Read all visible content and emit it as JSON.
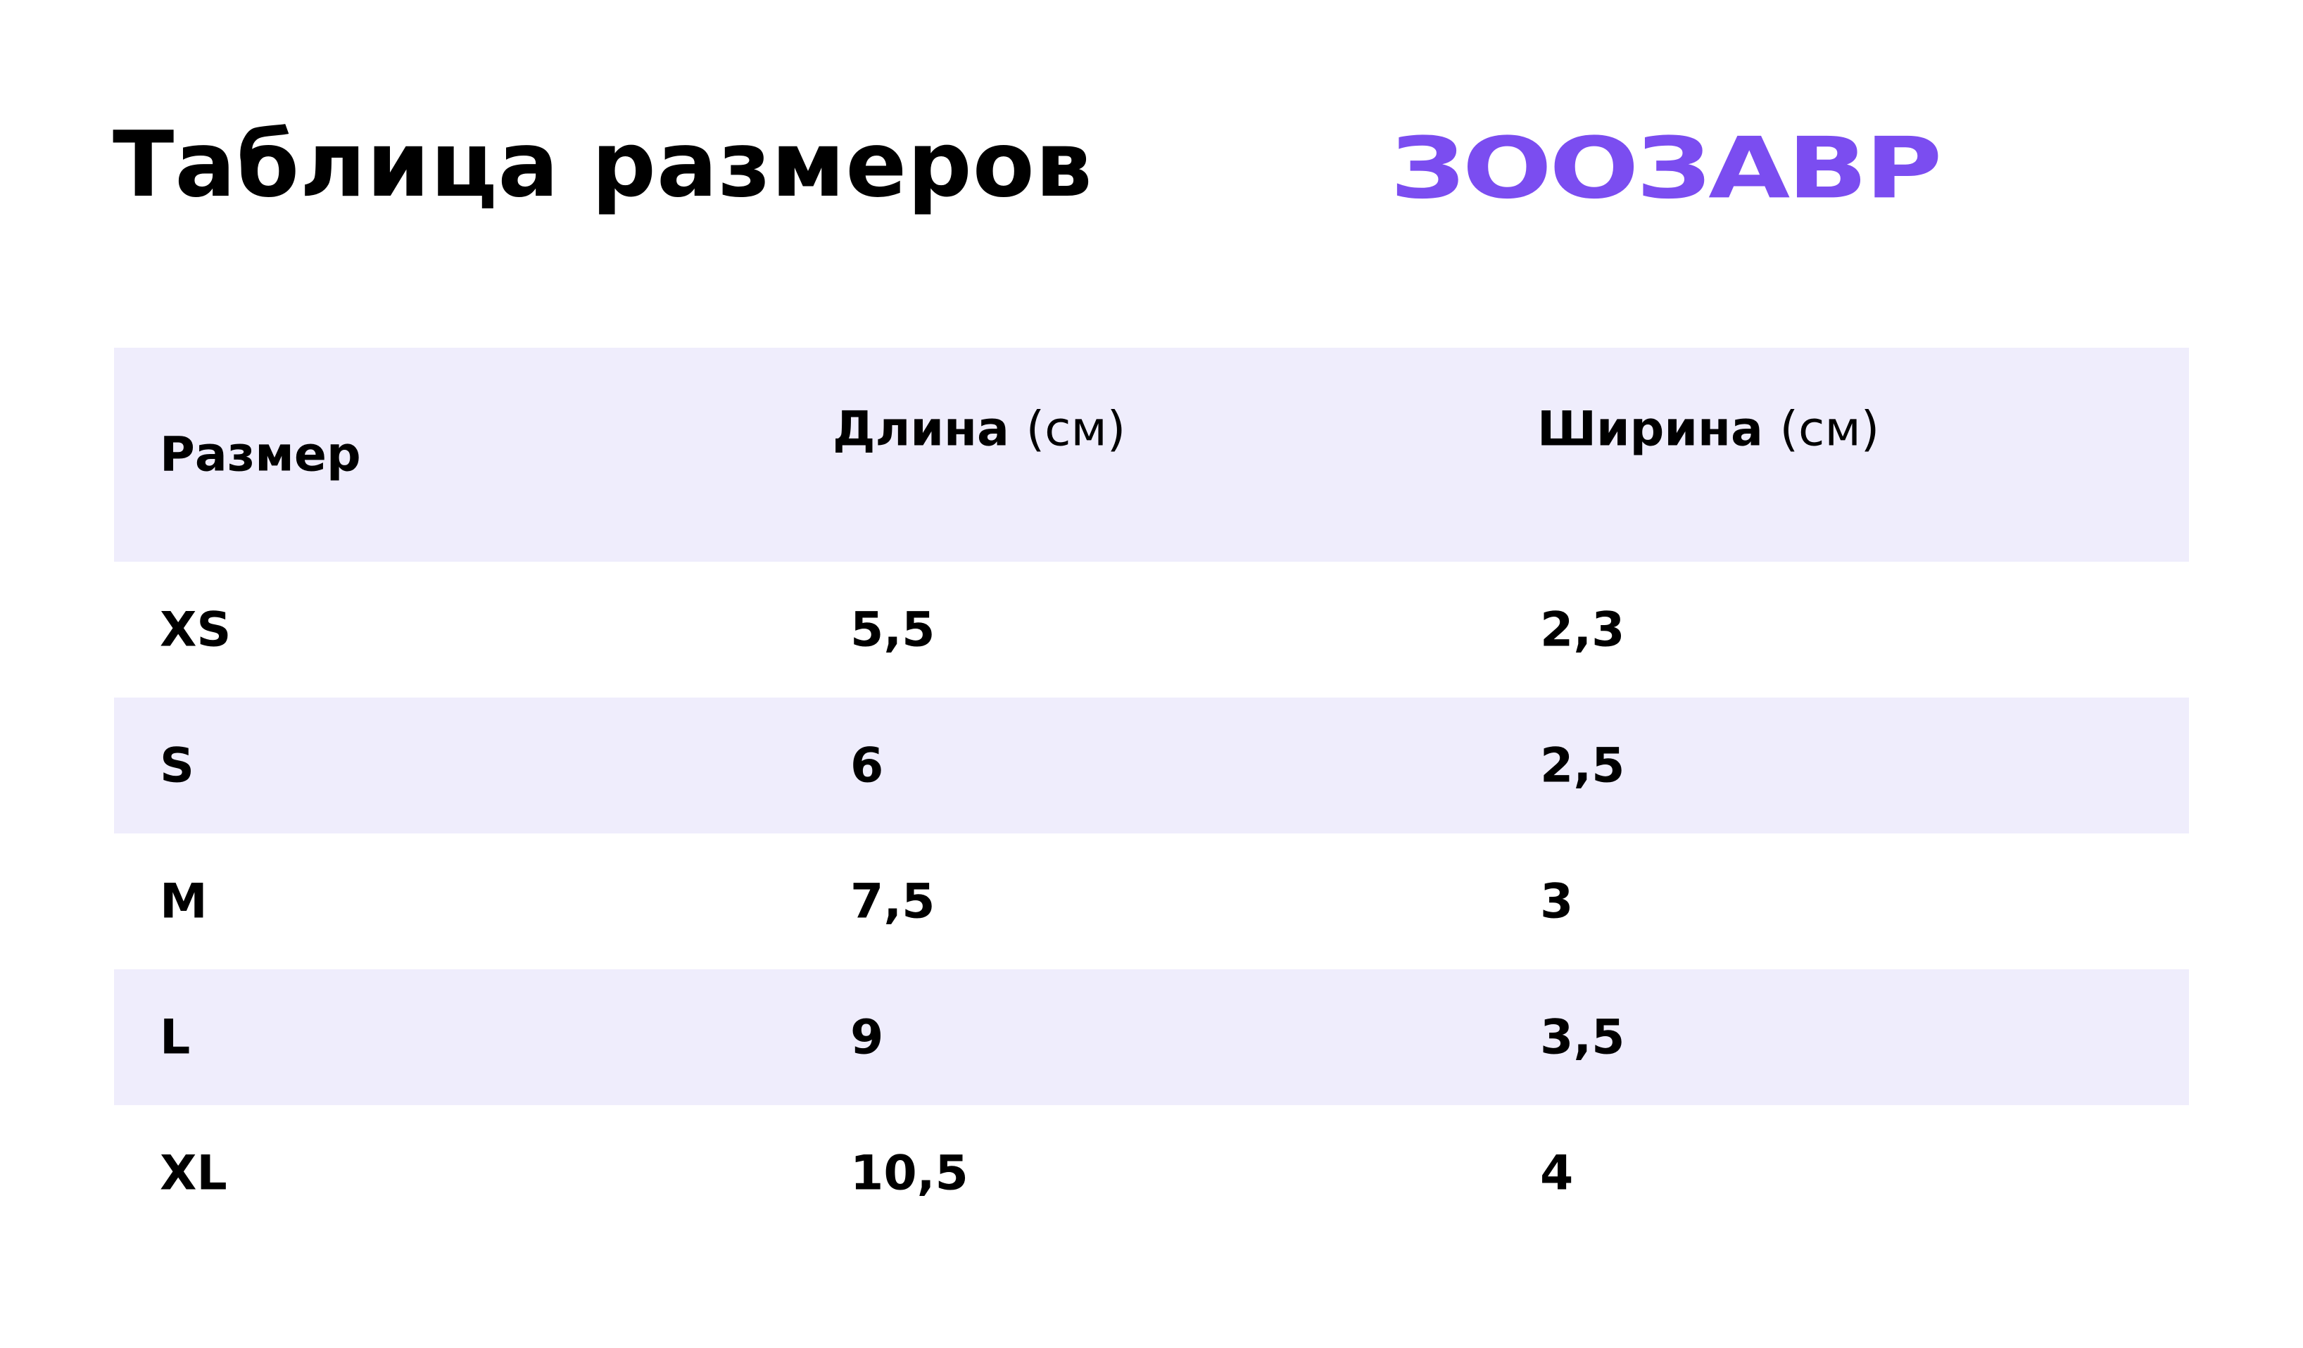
{
  "header": {
    "title": "Таблица размеров",
    "logo": "ЗООЗАВР"
  },
  "table": {
    "columns": [
      {
        "label": "Размер"
      },
      {
        "label": "Длина",
        "unit": "(см)"
      },
      {
        "label": "Ширина",
        "unit": "(см)"
      }
    ],
    "rows": [
      [
        "XS",
        "5,5",
        "2,3"
      ],
      [
        "S",
        "6",
        "2,5"
      ],
      [
        "M",
        "7,5",
        "3"
      ],
      [
        "L",
        "9",
        "3,5"
      ],
      [
        "XL",
        "10,5",
        "4"
      ]
    ]
  }
}
